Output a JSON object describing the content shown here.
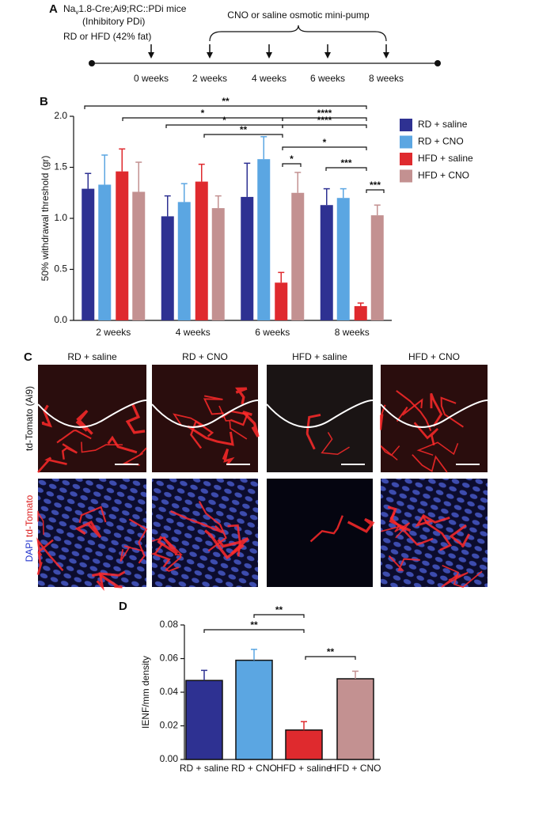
{
  "panel_labels": [
    "A",
    "B",
    "C",
    "D"
  ],
  "timeline": {
    "title_prefix": "Na",
    "title_subscript": "v",
    "title_rest": "1.8-Cre;Ai9;RC::PDi mice",
    "subtitle": "(Inhibitory PDi)",
    "diet": "RD or HFD (42% fat)",
    "pump": "CNO or saline osmotic mini-pump",
    "weeks": [
      "0 weeks",
      "2 weeks",
      "4 weeks",
      "6 weeks",
      "8 weeks"
    ]
  },
  "chart_data": [
    {
      "type": "bar",
      "y_label": "50% withdrawal threshold (gr)",
      "categories": [
        "2 weeks",
        "4 weeks",
        "6 weeks",
        "8 weeks"
      ],
      "series": [
        {
          "name": "RD + saline",
          "color": "#2e3192",
          "values": [
            1.29,
            1.02,
            1.21,
            1.13
          ],
          "errors": [
            0.15,
            0.2,
            0.33,
            0.16
          ]
        },
        {
          "name": "RD + CNO",
          "color": "#5ba6e2",
          "values": [
            1.33,
            1.16,
            1.58,
            1.2
          ],
          "errors": [
            0.29,
            0.18,
            0.22,
            0.09
          ]
        },
        {
          "name": "HFD + saline",
          "color": "#df2a2e",
          "values": [
            1.46,
            1.36,
            0.37,
            0.14
          ],
          "errors": [
            0.22,
            0.17,
            0.1,
            0.03
          ]
        },
        {
          "name": "HFD + CNO",
          "color": "#c39191",
          "values": [
            1.26,
            1.1,
            1.25,
            1.03
          ],
          "errors": [
            0.29,
            0.12,
            0.2,
            0.1
          ]
        }
      ],
      "ylim": [
        0,
        2.0
      ],
      "yticks": [
        {
          "value": 0,
          "label": "0.0"
        },
        0.5,
        {
          "value": 1,
          "label": "1.0"
        },
        1.5,
        {
          "value": 2,
          "label": "2.0"
        }
      ],
      "grid": false,
      "legend": "right",
      "annotations": [
        "**",
        "*",
        "****",
        "*",
        "****",
        "**",
        "*",
        "*",
        "***",
        "***"
      ]
    },
    {
      "type": "bar",
      "y_label": "IENF/mm density",
      "categories": [
        "RD + saline",
        "RD + CNO",
        "HFD + saline",
        "HFD + CNO"
      ],
      "values": [
        0.047,
        0.059,
        0.0175,
        0.048
      ],
      "errors": [
        0.006,
        0.0065,
        0.005,
        0.0045
      ],
      "colors": [
        "#2e3192",
        "#5ba6e2",
        "#df2a2e",
        "#c39191"
      ],
      "ylim": [
        0,
        0.08
      ],
      "yticks": [
        {
          "value": 0,
          "label": "0.00"
        },
        0.02,
        0.04,
        0.06,
        0.08
      ],
      "grid": false,
      "annotations": [
        "**",
        "**",
        "**"
      ]
    }
  ],
  "images": {
    "columns": [
      "RD + saline",
      "RD + CNO",
      "HFD + saline",
      "HFD + CNO"
    ],
    "row1_label": "td-Tomato (Ai9)",
    "row2_label_blue": "DAPI",
    "row2_label_red": "td-Tomato"
  }
}
